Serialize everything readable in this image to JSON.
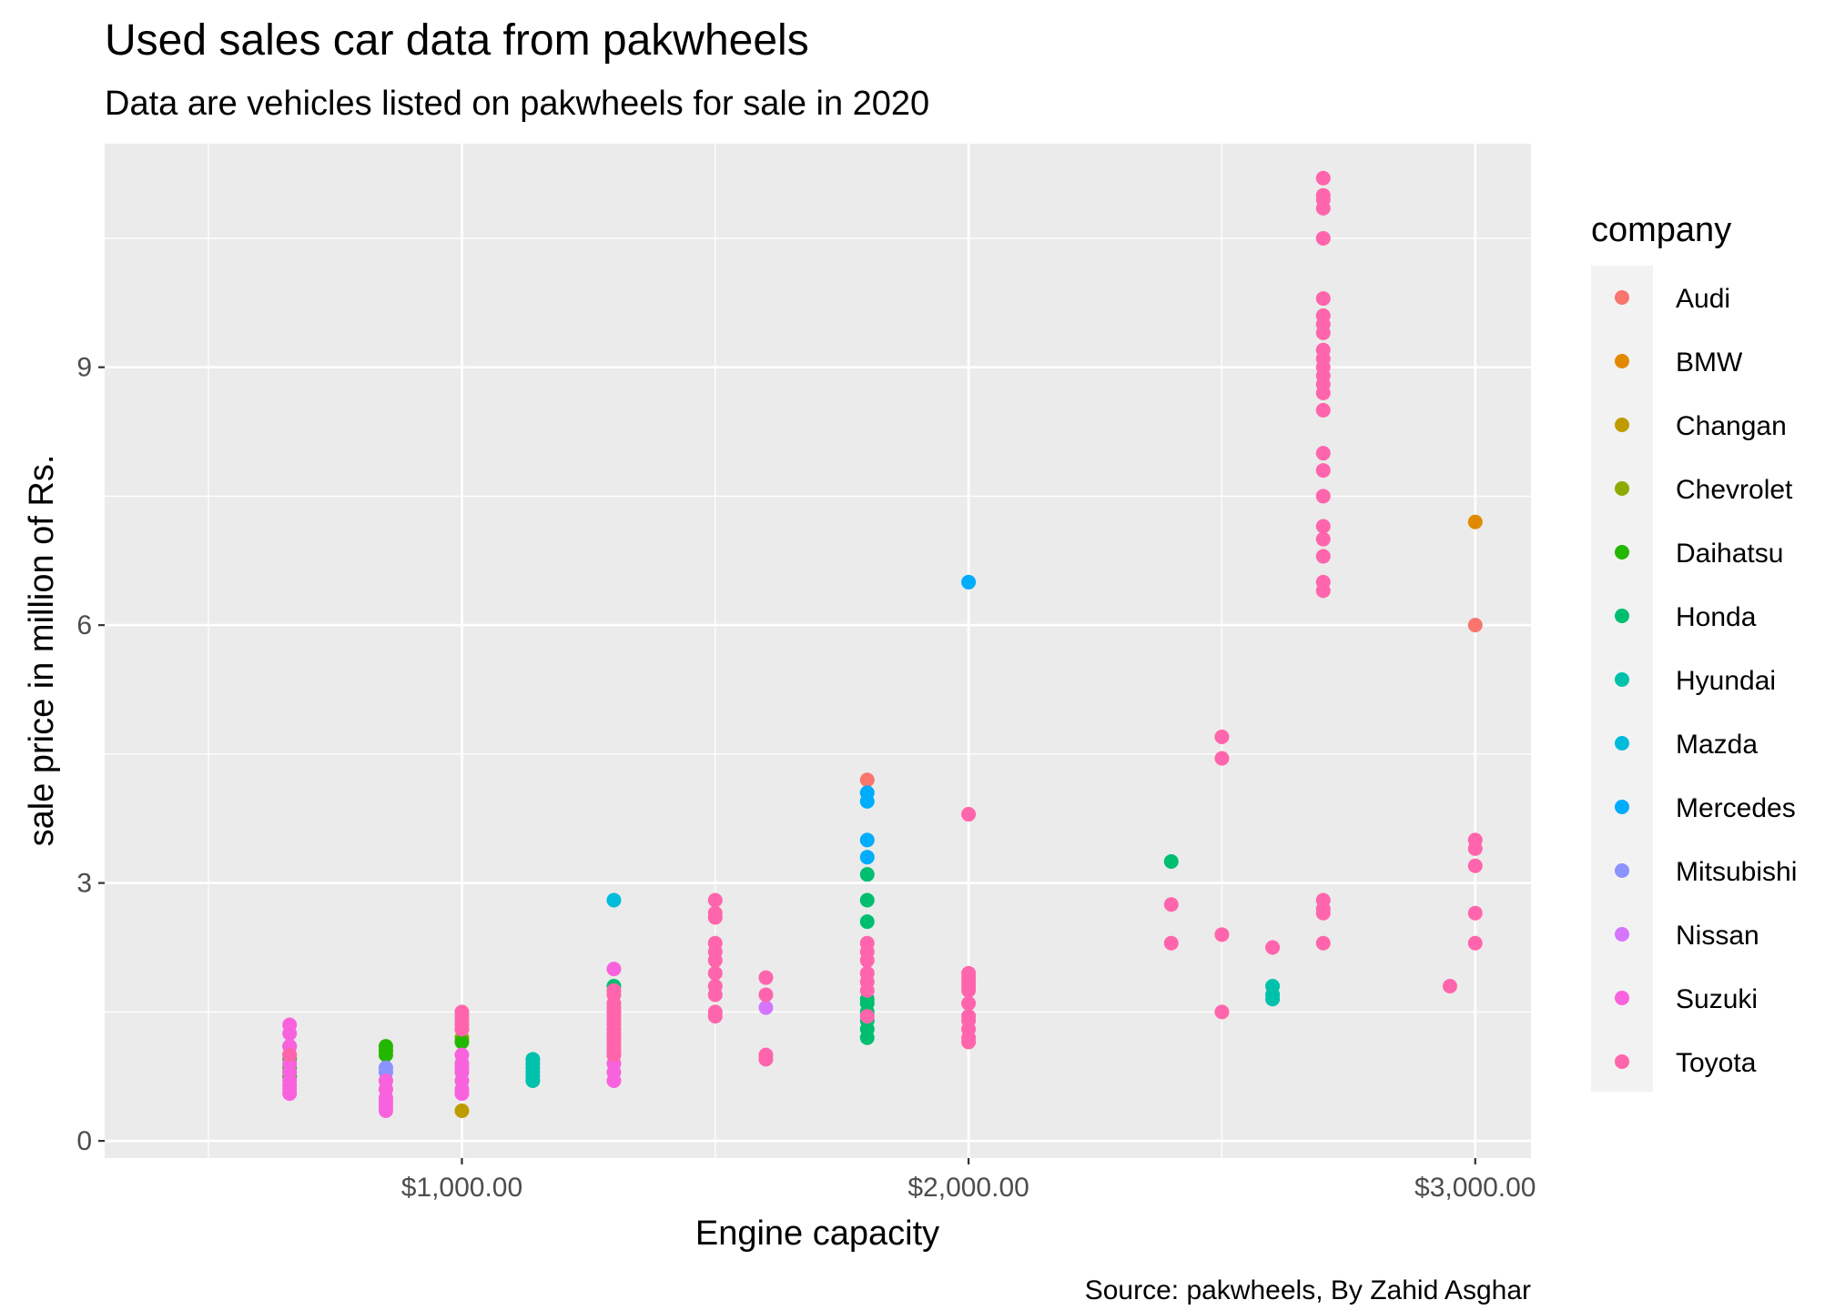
{
  "chart_data": {
    "type": "scatter",
    "title": "Used sales car data from pakwheels",
    "subtitle": "Data are vehicles listed on pakwheels for sale in 2020",
    "xlabel": "Engine capacity",
    "ylabel": "sale price in million of Rs.",
    "caption": "Source: pakwheels, By Zahid Asghar",
    "xlim": [
      295,
      3110
    ],
    "ylim": [
      -0.2,
      11.6
    ],
    "x_ticks": [
      1000,
      2000,
      3000
    ],
    "x_tick_labels": [
      "$1,000.00",
      "$2,000.00",
      "$3,000.00"
    ],
    "y_ticks": [
      0,
      3,
      6,
      9
    ],
    "y_tick_labels": [
      "0",
      "3",
      "6",
      "9"
    ],
    "legend_title": "company",
    "legend_position": "right",
    "grid": true,
    "series": [
      {
        "name": "Audi",
        "color": "#F8766D",
        "points": [
          [
            1800,
            4.2
          ],
          [
            3000,
            6.0
          ]
        ]
      },
      {
        "name": "BMW",
        "color": "#E18A00",
        "points": [
          [
            3000,
            7.2
          ]
        ]
      },
      {
        "name": "Changan",
        "color": "#BE9C00",
        "points": [
          [
            1000,
            0.35
          ]
        ]
      },
      {
        "name": "Chevrolet",
        "color": "#8CAB00",
        "points": [
          [
            660,
            0.75
          ],
          [
            1000,
            1.2
          ]
        ]
      },
      {
        "name": "Daihatsu",
        "color": "#24B700",
        "points": [
          [
            660,
            1.1
          ],
          [
            660,
            1.0
          ],
          [
            660,
            0.95
          ],
          [
            660,
            0.85
          ],
          [
            660,
            0.75
          ],
          [
            1000,
            1.15
          ],
          [
            850,
            1.1
          ],
          [
            850,
            1.05
          ],
          [
            850,
            1.0
          ]
        ]
      },
      {
        "name": "Honda",
        "color": "#00BE70",
        "points": [
          [
            1300,
            1.8
          ],
          [
            1800,
            3.1
          ],
          [
            1800,
            2.8
          ],
          [
            1800,
            2.55
          ],
          [
            1800,
            1.65
          ],
          [
            1800,
            1.6
          ],
          [
            1800,
            1.5
          ],
          [
            1800,
            1.4
          ],
          [
            1800,
            1.3
          ],
          [
            1800,
            1.2
          ],
          [
            2400,
            3.25
          ]
        ]
      },
      {
        "name": "Hyundai",
        "color": "#00C1AB",
        "points": [
          [
            1140,
            0.95
          ],
          [
            1140,
            0.9
          ],
          [
            1140,
            0.85
          ],
          [
            1140,
            0.8
          ],
          [
            1140,
            0.75
          ],
          [
            1140,
            0.7
          ],
          [
            2600,
            1.8
          ],
          [
            2600,
            1.7
          ],
          [
            2600,
            1.65
          ]
        ]
      },
      {
        "name": "Mazda",
        "color": "#00BBDA",
        "points": [
          [
            1300,
            2.8
          ]
        ]
      },
      {
        "name": "Mercedes",
        "color": "#00ACFC",
        "points": [
          [
            2000,
            6.5
          ],
          [
            1800,
            4.05
          ],
          [
            1800,
            3.95
          ],
          [
            1800,
            3.5
          ],
          [
            1800,
            3.3
          ]
        ]
      },
      {
        "name": "Mitsubishi",
        "color": "#8B93FF",
        "points": [
          [
            660,
            0.8
          ],
          [
            850,
            0.85
          ],
          [
            850,
            0.8
          ]
        ]
      },
      {
        "name": "Nissan",
        "color": "#D575FE",
        "points": [
          [
            1600,
            1.55
          ]
        ]
      },
      {
        "name": "Suzuki",
        "color": "#F962DD",
        "points": [
          [
            660,
            1.35
          ],
          [
            660,
            1.25
          ],
          [
            660,
            1.1
          ],
          [
            660,
            1.0
          ],
          [
            660,
            0.9
          ],
          [
            660,
            0.8
          ],
          [
            660,
            0.7
          ],
          [
            660,
            0.6
          ],
          [
            660,
            0.55
          ],
          [
            660,
            0.65
          ],
          [
            850,
            0.7
          ],
          [
            850,
            0.6
          ],
          [
            850,
            0.5
          ],
          [
            850,
            0.45
          ],
          [
            850,
            0.4
          ],
          [
            850,
            0.35
          ],
          [
            1000,
            1.45
          ],
          [
            1000,
            1.3
          ],
          [
            1000,
            1.0
          ],
          [
            1000,
            0.9
          ],
          [
            1000,
            0.85
          ],
          [
            1000,
            0.8
          ],
          [
            1000,
            0.7
          ],
          [
            1000,
            0.6
          ],
          [
            1000,
            0.55
          ],
          [
            1300,
            2.0
          ],
          [
            1300,
            1.5
          ],
          [
            1300,
            1.2
          ],
          [
            1300,
            1.0
          ],
          [
            1300,
            0.9
          ],
          [
            1300,
            0.8
          ],
          [
            1300,
            0.7
          ]
        ]
      },
      {
        "name": "Toyota",
        "color": "#FF65AC",
        "points": [
          [
            660,
            1.0
          ],
          [
            1000,
            1.5
          ],
          [
            1000,
            1.4
          ],
          [
            1000,
            1.35
          ],
          [
            1000,
            1.3
          ],
          [
            1300,
            1.75
          ],
          [
            1300,
            1.7
          ],
          [
            1300,
            1.6
          ],
          [
            1300,
            1.55
          ],
          [
            1300,
            1.5
          ],
          [
            1300,
            1.45
          ],
          [
            1300,
            1.4
          ],
          [
            1300,
            1.35
          ],
          [
            1300,
            1.3
          ],
          [
            1300,
            1.25
          ],
          [
            1300,
            1.2
          ],
          [
            1300,
            1.15
          ],
          [
            1300,
            1.1
          ],
          [
            1300,
            1.05
          ],
          [
            1300,
            1.0
          ],
          [
            1500,
            2.8
          ],
          [
            1500,
            2.65
          ],
          [
            1500,
            2.6
          ],
          [
            1500,
            2.3
          ],
          [
            1500,
            2.2
          ],
          [
            1500,
            2.1
          ],
          [
            1500,
            1.95
          ],
          [
            1500,
            1.8
          ],
          [
            1500,
            1.7
          ],
          [
            1500,
            1.5
          ],
          [
            1500,
            1.45
          ],
          [
            1600,
            1.9
          ],
          [
            1600,
            1.7
          ],
          [
            1600,
            1.0
          ],
          [
            1600,
            0.95
          ],
          [
            1800,
            2.3
          ],
          [
            1800,
            2.2
          ],
          [
            1800,
            2.1
          ],
          [
            1800,
            1.95
          ],
          [
            1800,
            1.85
          ],
          [
            1800,
            1.75
          ],
          [
            1800,
            1.45
          ],
          [
            2000,
            3.8
          ],
          [
            2000,
            1.95
          ],
          [
            2000,
            1.9
          ],
          [
            2000,
            1.85
          ],
          [
            2000,
            1.8
          ],
          [
            2000,
            1.75
          ],
          [
            2000,
            1.6
          ],
          [
            2000,
            1.45
          ],
          [
            2000,
            1.4
          ],
          [
            2000,
            1.3
          ],
          [
            2000,
            1.2
          ],
          [
            2000,
            1.15
          ],
          [
            2400,
            2.75
          ],
          [
            2400,
            2.3
          ],
          [
            2500,
            4.7
          ],
          [
            2500,
            4.45
          ],
          [
            2500,
            2.4
          ],
          [
            2500,
            1.5
          ],
          [
            2600,
            2.25
          ],
          [
            2700,
            11.2
          ],
          [
            2700,
            11.0
          ],
          [
            2700,
            10.95
          ],
          [
            2700,
            10.85
          ],
          [
            2700,
            10.5
          ],
          [
            2700,
            9.8
          ],
          [
            2700,
            9.6
          ],
          [
            2700,
            9.5
          ],
          [
            2700,
            9.4
          ],
          [
            2700,
            9.2
          ],
          [
            2700,
            9.1
          ],
          [
            2700,
            9.0
          ],
          [
            2700,
            8.9
          ],
          [
            2700,
            8.8
          ],
          [
            2700,
            8.7
          ],
          [
            2700,
            8.5
          ],
          [
            2700,
            8.0
          ],
          [
            2700,
            7.8
          ],
          [
            2700,
            7.5
          ],
          [
            2700,
            7.15
          ],
          [
            2700,
            7.0
          ],
          [
            2700,
            6.8
          ],
          [
            2700,
            6.5
          ],
          [
            2700,
            6.4
          ],
          [
            2700,
            2.8
          ],
          [
            2700,
            2.7
          ],
          [
            2700,
            2.65
          ],
          [
            2700,
            2.3
          ],
          [
            2950,
            1.8
          ],
          [
            3000,
            3.5
          ],
          [
            3000,
            3.4
          ],
          [
            3000,
            3.2
          ],
          [
            3000,
            2.65
          ],
          [
            3000,
            2.3
          ]
        ]
      }
    ]
  }
}
